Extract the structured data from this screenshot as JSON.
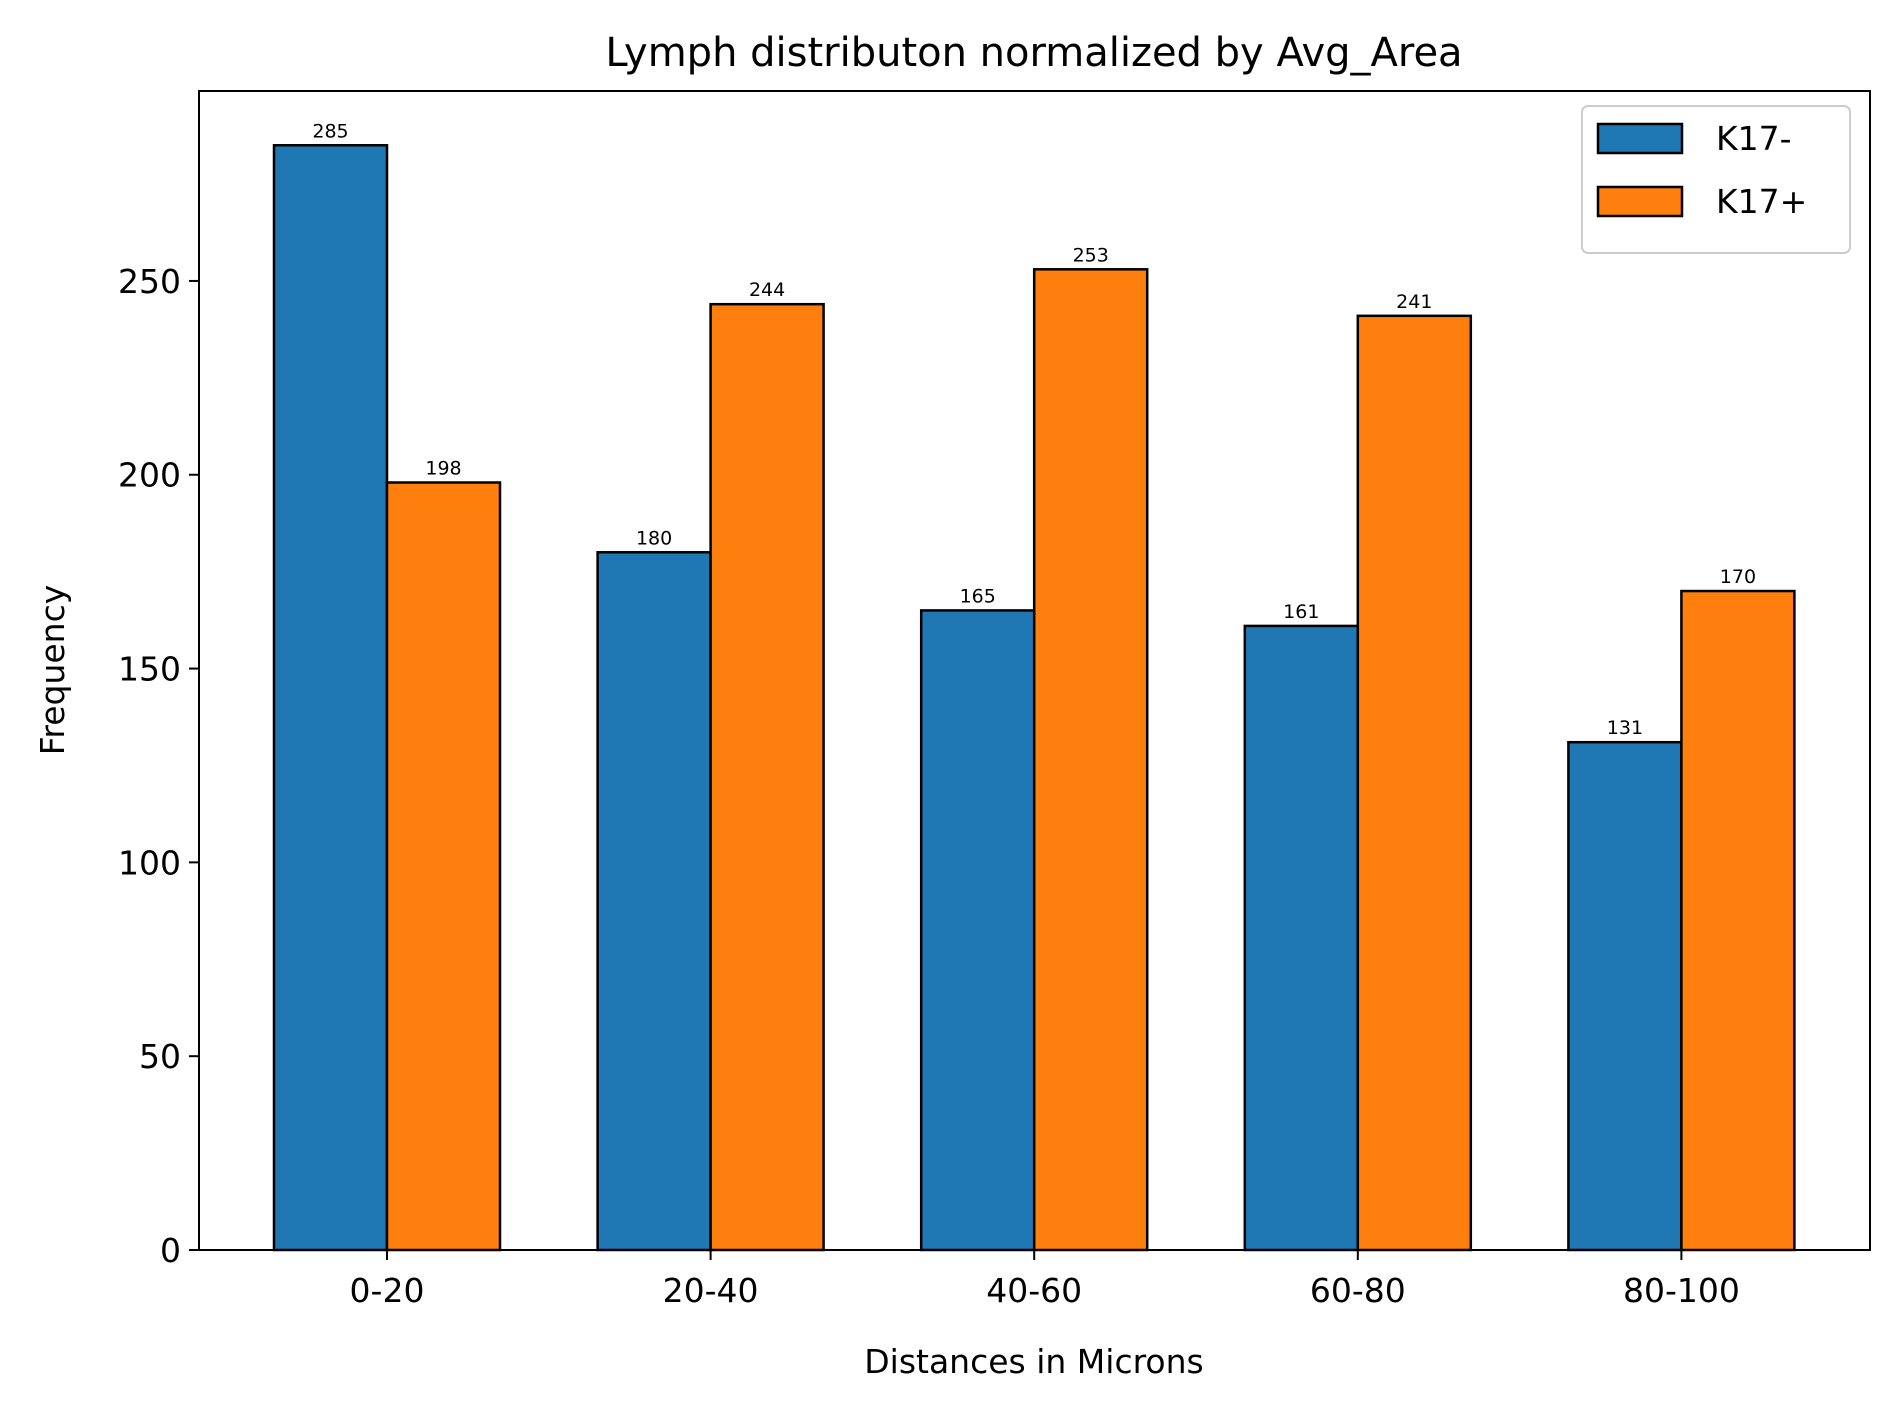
{
  "chart_data": {
    "type": "bar",
    "title": "Lymph distributon normalized by Avg_Area",
    "xlabel": "Distances in Microns",
    "ylabel": "Frequency",
    "categories": [
      "0-20",
      "20-40",
      "40-60",
      "60-80",
      "80-100"
    ],
    "series": [
      {
        "name": "K17-",
        "color": "#1f77b4",
        "values": [
          285,
          180,
          165,
          161,
          131
        ]
      },
      {
        "name": "K17+",
        "color": "#ff7f0e",
        "values": [
          198,
          244,
          253,
          241,
          170
        ]
      }
    ],
    "ylim": [
      0,
      299
    ],
    "yticks": [
      0,
      50,
      100,
      150,
      200,
      250
    ],
    "legend": "top-right",
    "grid": false,
    "bar_edge_color": "#000000"
  }
}
